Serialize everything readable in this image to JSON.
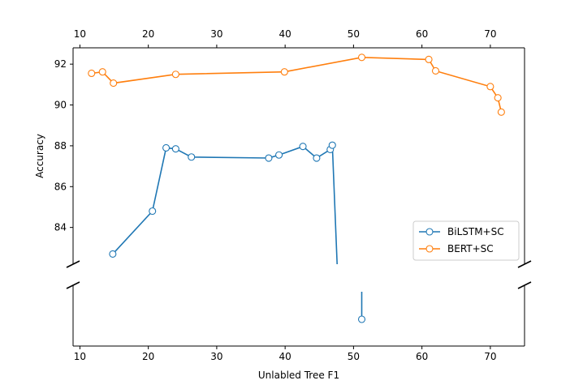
{
  "chart_data": {
    "type": "line",
    "xlabel": "Unlabled Tree F1",
    "ylabel": "Accuracy",
    "x_ticks": [
      "10",
      "20",
      "30",
      "40",
      "50",
      "60",
      "70"
    ],
    "y_ticks": [
      "84",
      "86",
      "88",
      "90",
      "92"
    ],
    "xlim": [
      9,
      75
    ],
    "ylim_upper_panel": [
      82.2,
      92.8
    ],
    "broken_y_axis": true,
    "grid": false,
    "legend_position": "center-right",
    "series": [
      {
        "name": "BiLSTM+SC",
        "color": "#1f77b4",
        "points": [
          {
            "x": 14.8,
            "y": 82.7
          },
          {
            "x": 20.6,
            "y": 84.8
          },
          {
            "x": 22.6,
            "y": 87.9
          },
          {
            "x": 24.0,
            "y": 87.85
          },
          {
            "x": 26.3,
            "y": 87.45
          },
          {
            "x": 37.6,
            "y": 87.4
          },
          {
            "x": 39.1,
            "y": 87.55
          },
          {
            "x": 42.6,
            "y": 87.97
          },
          {
            "x": 44.6,
            "y": 87.4
          },
          {
            "x": 46.6,
            "y": 87.82
          },
          {
            "x": 46.9,
            "y": 88.03
          }
        ],
        "extra_segment_upper": {
          "x1": 46.9,
          "x2": 47.6
        },
        "lower_panel_points": [
          {
            "x": 51.2
          }
        ]
      },
      {
        "name": "BERT+SC",
        "color": "#ff7f0e",
        "points": [
          {
            "x": 11.7,
            "y": 91.55
          },
          {
            "x": 13.3,
            "y": 91.62
          },
          {
            "x": 14.9,
            "y": 91.07
          },
          {
            "x": 24.0,
            "y": 91.5
          },
          {
            "x": 39.9,
            "y": 91.62
          },
          {
            "x": 51.2,
            "y": 92.33
          },
          {
            "x": 61.0,
            "y": 92.23
          },
          {
            "x": 62.0,
            "y": 91.67
          },
          {
            "x": 70.0,
            "y": 90.9
          },
          {
            "x": 71.1,
            "y": 90.35
          },
          {
            "x": 71.6,
            "y": 89.65
          }
        ]
      }
    ]
  }
}
